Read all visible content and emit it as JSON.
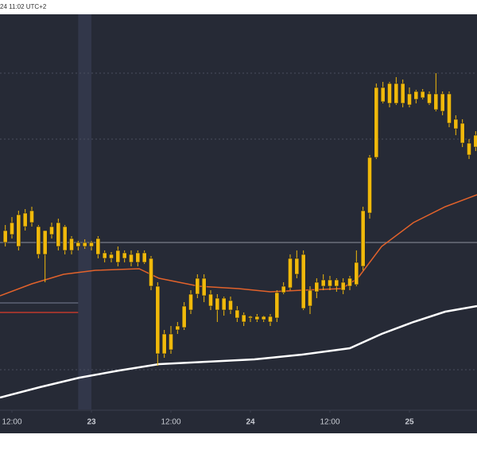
{
  "header": {
    "time": "24 11:02 UTC+2"
  },
  "chart_data": {
    "type": "candlestick",
    "x": [
      -1,
      0,
      1,
      2,
      3,
      4,
      5,
      6,
      7,
      8,
      9,
      10,
      11,
      12,
      13,
      14,
      15,
      16,
      17,
      18,
      19,
      20,
      21,
      22,
      23,
      24,
      25,
      26,
      27,
      28,
      29,
      30,
      31,
      32,
      33,
      34,
      35,
      36,
      37,
      38,
      39,
      40,
      41,
      42,
      43,
      44,
      45,
      46,
      47,
      48,
      49,
      50,
      51,
      52,
      53,
      54,
      55,
      56,
      57,
      58,
      59,
      60,
      61,
      62,
      63,
      64,
      65,
      66,
      67,
      68,
      69,
      70
    ],
    "open": [
      210,
      220,
      245,
      230,
      235,
      230,
      195,
      220,
      235,
      200,
      215,
      205,
      210,
      205,
      215,
      197,
      190,
      200,
      190,
      195,
      185,
      197,
      190,
      155,
      70,
      75,
      100,
      103,
      125,
      145,
      165,
      145,
      140,
      125,
      137,
      125,
      119,
      115,
      117,
      113,
      117,
      115,
      147,
      153,
      190,
      195,
      130,
      148,
      155,
      163,
      155,
      160,
      155,
      157,
      180,
      247,
      317,
      405,
      385,
      410,
      385,
      397,
      390,
      400,
      397,
      377,
      397,
      397,
      365,
      360,
      335,
      330
    ],
    "high": [
      232,
      242,
      250,
      252,
      255,
      232,
      225,
      235,
      240,
      232,
      218,
      212,
      214,
      212,
      218,
      200,
      198,
      205,
      200,
      200,
      200,
      200,
      193,
      160,
      100,
      105,
      110,
      135,
      150,
      170,
      170,
      150,
      145,
      142,
      142,
      130,
      122,
      118,
      120,
      118,
      120,
      150,
      160,
      195,
      200,
      200,
      155,
      165,
      170,
      168,
      165,
      165,
      168,
      200,
      255,
      320,
      410,
      412,
      412,
      418,
      415,
      405,
      402,
      403,
      400,
      423,
      400,
      400,
      370,
      365,
      340,
      350
    ],
    "low": [
      205,
      215,
      200,
      225,
      230,
      190,
      160,
      215,
      200,
      195,
      195,
      200,
      202,
      200,
      190,
      185,
      185,
      180,
      185,
      180,
      180,
      183,
      150,
      55,
      65,
      70,
      95,
      100,
      120,
      140,
      135,
      125,
      110,
      118,
      120,
      110,
      105,
      110,
      110,
      110,
      105,
      110,
      145,
      150,
      165,
      125,
      120,
      140,
      150,
      150,
      148,
      145,
      150,
      155,
      175,
      240,
      315,
      385,
      380,
      383,
      380,
      380,
      385,
      390,
      383,
      375,
      370,
      355,
      345,
      330,
      315,
      325
    ],
    "close": [
      225,
      235,
      205,
      247,
      250,
      195,
      225,
      230,
      205,
      230,
      200,
      210,
      205,
      210,
      195,
      190,
      195,
      185,
      197,
      185,
      197,
      185,
      155,
      70,
      95,
      95,
      105,
      130,
      145,
      165,
      143,
      130,
      125,
      140,
      125,
      115,
      110,
      117,
      113,
      117,
      110,
      147,
      155,
      190,
      170,
      127,
      150,
      160,
      163,
      155,
      163,
      150,
      165,
      185,
      250,
      317,
      405,
      387,
      410,
      385,
      410,
      383,
      400,
      392,
      385,
      397,
      375,
      360,
      353,
      335,
      320,
      345
    ],
    "color": "#f0b90b",
    "series": [
      {
        "color": "#e2622b",
        "x": [
          -1.8,
          3,
          7.8,
          12.6,
          19.2,
          22.2,
          28.2,
          34.2,
          39,
          43.8,
          49.8,
          52.2,
          55.8,
          60.6,
          65.4,
          70.2
        ],
        "values": [
          143,
          158,
          170,
          175,
          177,
          165,
          155,
          152,
          148,
          150,
          152,
          165,
          205,
          235,
          255,
          270
        ]
      },
      {
        "color": "#ffffff",
        "x": [
          -1.8,
          4.2,
          10.2,
          16.2,
          22.2,
          29.4,
          36.6,
          43.8,
          51,
          55.8,
          60.6,
          65.4,
          70.2
        ],
        "values": [
          15,
          28,
          40,
          49,
          57,
          60,
          63,
          69,
          77,
          95,
          110,
          123,
          130
        ]
      }
    ],
    "levels": [
      423,
      340,
      210,
      50
    ],
    "order_lines": [
      {
        "value": 134,
        "color": "#5d6375"
      },
      {
        "value": 122,
        "color": "#c0392b"
      }
    ],
    "highlight_x": 11,
    "xlim": [
      -1.8,
      70.2
    ],
    "ylim": [
      0,
      497
    ],
    "xticks": [
      {
        "value": 0,
        "label": "12:00"
      },
      {
        "value": 12,
        "label": "23"
      },
      {
        "value": 24,
        "label": "12:00"
      },
      {
        "value": 36,
        "label": "24"
      },
      {
        "value": 48,
        "label": "12:00"
      },
      {
        "value": 60,
        "label": "25"
      }
    ]
  }
}
